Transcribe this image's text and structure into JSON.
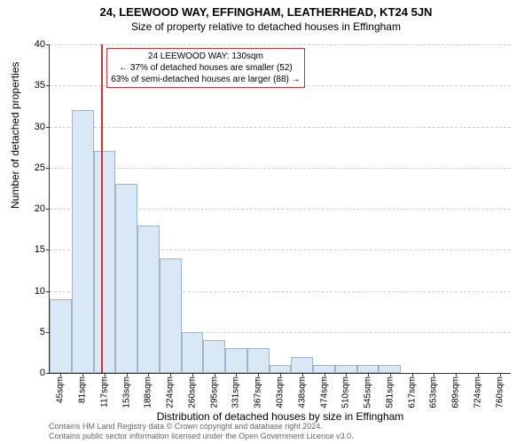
{
  "title": "24, LEEWOOD WAY, EFFINGHAM, LEATHERHEAD, KT24 5JN",
  "subtitle": "Size of property relative to detached houses in Effingham",
  "chart": {
    "type": "histogram",
    "ylabel": "Number of detached properties",
    "xlabel": "Distribution of detached houses by size in Effingham",
    "ylim": [
      0,
      40
    ],
    "ytick_step": 5,
    "xticks": [
      "45sqm",
      "81sqm",
      "117sqm",
      "153sqm",
      "188sqm",
      "224sqm",
      "260sqm",
      "295sqm",
      "331sqm",
      "367sqm",
      "403sqm",
      "438sqm",
      "474sqm",
      "510sqm",
      "545sqm",
      "581sqm",
      "617sqm",
      "653sqm",
      "689sqm",
      "724sqm",
      "760sqm"
    ],
    "values": [
      9,
      32,
      27,
      23,
      18,
      14,
      5,
      4,
      3,
      3,
      1,
      2,
      1,
      1,
      1,
      1,
      0,
      0,
      0,
      0,
      0
    ],
    "bar_fill": "#dae8f5",
    "bar_border": "#9cb4cc",
    "grid_color": "#cccccc",
    "background_color": "#ffffff",
    "vline_index": 2.35,
    "vline_color": "#cc3333",
    "title_fontsize": 13,
    "subtitle_fontsize": 12,
    "label_fontsize": 12,
    "tick_fontsize": 11
  },
  "callout": {
    "line1": "24 LEEWOOD WAY: 130sqm",
    "line2": "← 37% of detached houses are smaller (52)",
    "line3": "63% of semi-detached houses are larger (88) →"
  },
  "footer": {
    "line1": "Contains HM Land Registry data © Crown copyright and database right 2024.",
    "line2": "Contains public sector information licensed under the Open Government Licence v3.0."
  }
}
